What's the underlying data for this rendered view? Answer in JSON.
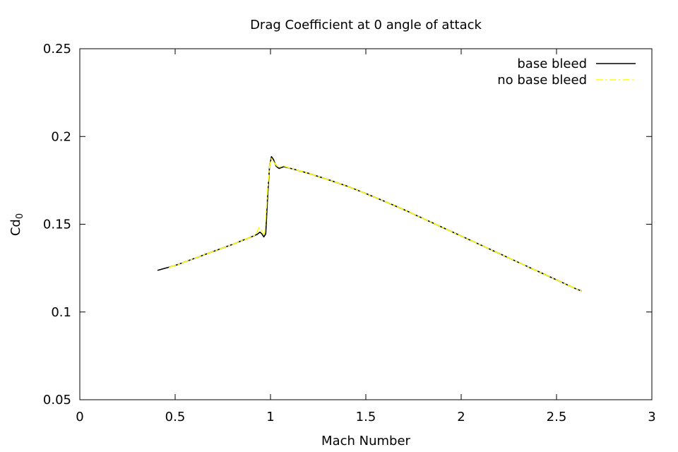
{
  "chart_data": {
    "type": "line",
    "title": "Drag Coefficient at 0 angle of attack",
    "xlabel": "Mach Number",
    "ylabel_main": "Cd",
    "ylabel_sub": "0",
    "xlim": [
      0,
      3
    ],
    "ylim": [
      0.05,
      0.25
    ],
    "xticks": [
      {
        "value": 0,
        "label": "0"
      },
      {
        "value": 0.5,
        "label": "0.5"
      },
      {
        "value": 1,
        "label": "1"
      },
      {
        "value": 1.5,
        "label": "1.5"
      },
      {
        "value": 2,
        "label": "2"
      },
      {
        "value": 2.5,
        "label": "2.5"
      },
      {
        "value": 3,
        "label": "3"
      }
    ],
    "yticks": [
      {
        "value": 0.05,
        "label": "0.05"
      },
      {
        "value": 0.1,
        "label": "0.1"
      },
      {
        "value": 0.15,
        "label": "0.15"
      },
      {
        "value": 0.2,
        "label": "0.2"
      },
      {
        "value": 0.25,
        "label": "0.25"
      }
    ],
    "grid": false,
    "legend_position": "top-right",
    "series": [
      {
        "name": "base bleed",
        "color": "#000000",
        "dash": "solid",
        "points": [
          [
            0.41,
            0.1238
          ],
          [
            0.5,
            0.1265
          ],
          [
            0.6,
            0.1305
          ],
          [
            0.7,
            0.1345
          ],
          [
            0.8,
            0.1385
          ],
          [
            0.9,
            0.1428
          ],
          [
            0.93,
            0.1442
          ],
          [
            0.945,
            0.1455
          ],
          [
            0.955,
            0.1445
          ],
          [
            0.965,
            0.1428
          ],
          [
            0.975,
            0.1445
          ],
          [
            0.985,
            0.166
          ],
          [
            0.995,
            0.183
          ],
          [
            1.005,
            0.1885
          ],
          [
            1.015,
            0.187
          ],
          [
            1.03,
            0.183
          ],
          [
            1.045,
            0.1818
          ],
          [
            1.07,
            0.1828
          ],
          [
            1.1,
            0.182
          ],
          [
            1.2,
            0.179
          ],
          [
            1.3,
            0.1755
          ],
          [
            1.4,
            0.1718
          ],
          [
            1.5,
            0.1675
          ],
          [
            1.6,
            0.163
          ],
          [
            1.7,
            0.1583
          ],
          [
            1.8,
            0.1533
          ],
          [
            1.9,
            0.1483
          ],
          [
            2.0,
            0.1433
          ],
          [
            2.1,
            0.1383
          ],
          [
            2.2,
            0.1333
          ],
          [
            2.3,
            0.1283
          ],
          [
            2.4,
            0.1233
          ],
          [
            2.5,
            0.1183
          ],
          [
            2.6,
            0.1133
          ],
          [
            2.63,
            0.112
          ]
        ]
      },
      {
        "name": "no base bleed",
        "color": "#ffff00",
        "dash": "dashdot",
        "points": [
          [
            0.47,
            0.1255
          ],
          [
            0.5,
            0.1265
          ],
          [
            0.6,
            0.1305
          ],
          [
            0.7,
            0.1345
          ],
          [
            0.8,
            0.1385
          ],
          [
            0.9,
            0.1428
          ],
          [
            0.92,
            0.1438
          ],
          [
            0.94,
            0.148
          ],
          [
            0.95,
            0.1468
          ],
          [
            0.96,
            0.1445
          ],
          [
            0.97,
            0.145
          ],
          [
            0.985,
            0.17
          ],
          [
            0.995,
            0.183
          ],
          [
            1.005,
            0.1875
          ],
          [
            1.02,
            0.185
          ],
          [
            1.04,
            0.1825
          ],
          [
            1.07,
            0.1832
          ],
          [
            1.1,
            0.182
          ],
          [
            1.2,
            0.179
          ],
          [
            1.3,
            0.1755
          ],
          [
            1.4,
            0.1718
          ],
          [
            1.5,
            0.1675
          ],
          [
            1.6,
            0.163
          ],
          [
            1.7,
            0.1583
          ],
          [
            1.8,
            0.1533
          ],
          [
            1.9,
            0.1483
          ],
          [
            2.0,
            0.1433
          ],
          [
            2.1,
            0.1383
          ],
          [
            2.2,
            0.1333
          ],
          [
            2.3,
            0.1283
          ],
          [
            2.4,
            0.1233
          ],
          [
            2.5,
            0.1183
          ],
          [
            2.6,
            0.1133
          ],
          [
            2.63,
            0.112
          ]
        ]
      }
    ]
  }
}
